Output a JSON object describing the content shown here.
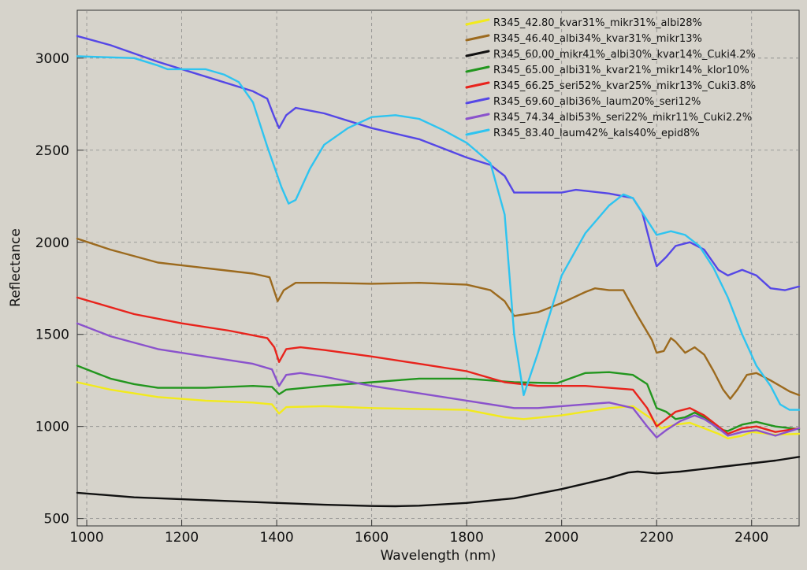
{
  "chart_data": {
    "type": "line",
    "title": "",
    "xlabel": "Wavelength (nm)",
    "ylabel": "Reflectance",
    "xlim": [
      980,
      2500
    ],
    "ylim": [
      460,
      3260
    ],
    "xticks": [
      1000,
      1200,
      1400,
      1600,
      1800,
      2000,
      2200,
      2400
    ],
    "yticks": [
      500,
      1000,
      1500,
      2000,
      2500,
      3000
    ],
    "grid": true,
    "legend_position": "top-right",
    "series": [
      {
        "name": "R345_42.80_kvar31%_mikr31%_albi28%",
        "color": "#f2ea1c",
        "points": [
          [
            980,
            1240
          ],
          [
            1050,
            1200
          ],
          [
            1150,
            1160
          ],
          [
            1250,
            1140
          ],
          [
            1350,
            1130
          ],
          [
            1390,
            1120
          ],
          [
            1405,
            1070
          ],
          [
            1420,
            1105
          ],
          [
            1500,
            1110
          ],
          [
            1600,
            1100
          ],
          [
            1700,
            1095
          ],
          [
            1800,
            1090
          ],
          [
            1880,
            1050
          ],
          [
            1920,
            1040
          ],
          [
            2000,
            1060
          ],
          [
            2100,
            1100
          ],
          [
            2150,
            1110
          ],
          [
            2190,
            1040
          ],
          [
            2210,
            990
          ],
          [
            2240,
            1010
          ],
          [
            2270,
            1020
          ],
          [
            2300,
            990
          ],
          [
            2330,
            960
          ],
          [
            2350,
            935
          ],
          [
            2380,
            950
          ],
          [
            2400,
            970
          ],
          [
            2450,
            955
          ],
          [
            2500,
            960
          ]
        ]
      },
      {
        "name": "R345_46.40_albi34%_kvar31%_mikr13%",
        "color": "#9c6a1e",
        "points": [
          [
            980,
            2020
          ],
          [
            1050,
            1960
          ],
          [
            1150,
            1890
          ],
          [
            1250,
            1860
          ],
          [
            1350,
            1830
          ],
          [
            1385,
            1810
          ],
          [
            1402,
            1680
          ],
          [
            1415,
            1740
          ],
          [
            1440,
            1780
          ],
          [
            1500,
            1780
          ],
          [
            1600,
            1775
          ],
          [
            1700,
            1780
          ],
          [
            1800,
            1770
          ],
          [
            1850,
            1740
          ],
          [
            1880,
            1680
          ],
          [
            1900,
            1600
          ],
          [
            1950,
            1620
          ],
          [
            2000,
            1670
          ],
          [
            2050,
            1730
          ],
          [
            2070,
            1750
          ],
          [
            2100,
            1740
          ],
          [
            2130,
            1740
          ],
          [
            2160,
            1600
          ],
          [
            2190,
            1470
          ],
          [
            2200,
            1400
          ],
          [
            2215,
            1410
          ],
          [
            2230,
            1480
          ],
          [
            2240,
            1460
          ],
          [
            2260,
            1400
          ],
          [
            2280,
            1430
          ],
          [
            2300,
            1390
          ],
          [
            2320,
            1300
          ],
          [
            2340,
            1200
          ],
          [
            2355,
            1150
          ],
          [
            2370,
            1200
          ],
          [
            2390,
            1280
          ],
          [
            2410,
            1290
          ],
          [
            2440,
            1250
          ],
          [
            2460,
            1220
          ],
          [
            2480,
            1190
          ],
          [
            2500,
            1170
          ]
        ]
      },
      {
        "name": "R345_60.00_mikr41%_albi30%_kvar14%_Cuki4.2%",
        "color": "#111111",
        "points": [
          [
            980,
            640
          ],
          [
            1100,
            615
          ],
          [
            1200,
            605
          ],
          [
            1300,
            595
          ],
          [
            1400,
            585
          ],
          [
            1500,
            575
          ],
          [
            1600,
            568
          ],
          [
            1650,
            567
          ],
          [
            1700,
            570
          ],
          [
            1800,
            585
          ],
          [
            1900,
            610
          ],
          [
            2000,
            660
          ],
          [
            2050,
            690
          ],
          [
            2100,
            720
          ],
          [
            2140,
            750
          ],
          [
            2160,
            755
          ],
          [
            2200,
            745
          ],
          [
            2250,
            755
          ],
          [
            2300,
            770
          ],
          [
            2350,
            785
          ],
          [
            2400,
            800
          ],
          [
            2450,
            815
          ],
          [
            2500,
            835
          ]
        ]
      },
      {
        "name": "R345_65.00_albi31%_kvar21%_mikr14%_klor10%",
        "color": "#22961e",
        "points": [
          [
            980,
            1330
          ],
          [
            1050,
            1260
          ],
          [
            1100,
            1230
          ],
          [
            1150,
            1210
          ],
          [
            1250,
            1210
          ],
          [
            1350,
            1220
          ],
          [
            1390,
            1215
          ],
          [
            1405,
            1175
          ],
          [
            1420,
            1200
          ],
          [
            1500,
            1220
          ],
          [
            1600,
            1240
          ],
          [
            1700,
            1260
          ],
          [
            1800,
            1260
          ],
          [
            1900,
            1240
          ],
          [
            1990,
            1235
          ],
          [
            2050,
            1290
          ],
          [
            2100,
            1295
          ],
          [
            2150,
            1280
          ],
          [
            2180,
            1230
          ],
          [
            2200,
            1100
          ],
          [
            2220,
            1080
          ],
          [
            2240,
            1040
          ],
          [
            2260,
            1050
          ],
          [
            2280,
            1075
          ],
          [
            2300,
            1050
          ],
          [
            2330,
            985
          ],
          [
            2350,
            975
          ],
          [
            2380,
            1010
          ],
          [
            2410,
            1025
          ],
          [
            2450,
            1000
          ],
          [
            2500,
            985
          ]
        ]
      },
      {
        "name": "R345_66.25_seri52%_kvar25%_mikr13%_Cuki3.8%",
        "color": "#e8231c",
        "points": [
          [
            980,
            1700
          ],
          [
            1100,
            1610
          ],
          [
            1200,
            1560
          ],
          [
            1300,
            1520
          ],
          [
            1380,
            1480
          ],
          [
            1395,
            1430
          ],
          [
            1405,
            1350
          ],
          [
            1420,
            1420
          ],
          [
            1450,
            1430
          ],
          [
            1500,
            1415
          ],
          [
            1600,
            1380
          ],
          [
            1700,
            1340
          ],
          [
            1800,
            1300
          ],
          [
            1880,
            1240
          ],
          [
            1950,
            1220
          ],
          [
            2050,
            1220
          ],
          [
            2150,
            1200
          ],
          [
            2180,
            1100
          ],
          [
            2200,
            1000
          ],
          [
            2220,
            1040
          ],
          [
            2240,
            1080
          ],
          [
            2270,
            1100
          ],
          [
            2300,
            1060
          ],
          [
            2330,
            1000
          ],
          [
            2350,
            960
          ],
          [
            2380,
            990
          ],
          [
            2410,
            1000
          ],
          [
            2450,
            970
          ],
          [
            2500,
            990
          ]
        ]
      },
      {
        "name": "R345_69.60_albi36%_laum20%_seri12%",
        "color": "#5547e6",
        "points": [
          [
            980,
            3120
          ],
          [
            1050,
            3070
          ],
          [
            1150,
            2980
          ],
          [
            1250,
            2900
          ],
          [
            1350,
            2820
          ],
          [
            1380,
            2780
          ],
          [
            1395,
            2680
          ],
          [
            1405,
            2620
          ],
          [
            1420,
            2690
          ],
          [
            1440,
            2730
          ],
          [
            1500,
            2700
          ],
          [
            1600,
            2620
          ],
          [
            1700,
            2560
          ],
          [
            1800,
            2460
          ],
          [
            1850,
            2420
          ],
          [
            1880,
            2360
          ],
          [
            1900,
            2270
          ],
          [
            2000,
            2270
          ],
          [
            2030,
            2285
          ],
          [
            2100,
            2265
          ],
          [
            2150,
            2240
          ],
          [
            2170,
            2160
          ],
          [
            2190,
            1960
          ],
          [
            2200,
            1870
          ],
          [
            2220,
            1920
          ],
          [
            2240,
            1980
          ],
          [
            2270,
            2000
          ],
          [
            2300,
            1960
          ],
          [
            2330,
            1850
          ],
          [
            2350,
            1820
          ],
          [
            2380,
            1850
          ],
          [
            2410,
            1820
          ],
          [
            2440,
            1750
          ],
          [
            2470,
            1740
          ],
          [
            2500,
            1760
          ]
        ]
      },
      {
        "name": "R345_74.34_albi53%_seri22%_mikr11%_Cuki2.2%",
        "color": "#8a52cc",
        "points": [
          [
            980,
            1560
          ],
          [
            1050,
            1490
          ],
          [
            1150,
            1420
          ],
          [
            1250,
            1380
          ],
          [
            1350,
            1340
          ],
          [
            1390,
            1310
          ],
          [
            1405,
            1220
          ],
          [
            1420,
            1280
          ],
          [
            1450,
            1290
          ],
          [
            1500,
            1270
          ],
          [
            1600,
            1220
          ],
          [
            1700,
            1180
          ],
          [
            1800,
            1140
          ],
          [
            1900,
            1100
          ],
          [
            1950,
            1100
          ],
          [
            2050,
            1120
          ],
          [
            2100,
            1130
          ],
          [
            2150,
            1100
          ],
          [
            2180,
            1000
          ],
          [
            2200,
            940
          ],
          [
            2220,
            980
          ],
          [
            2250,
            1030
          ],
          [
            2280,
            1060
          ],
          [
            2300,
            1040
          ],
          [
            2330,
            990
          ],
          [
            2350,
            950
          ],
          [
            2380,
            970
          ],
          [
            2410,
            980
          ],
          [
            2450,
            950
          ],
          [
            2500,
            990
          ]
        ]
      },
      {
        "name": "R345_83.40_laum42%_kals40%_epid8%",
        "color": "#2ec4f0",
        "points": [
          [
            980,
            3010
          ],
          [
            1100,
            3000
          ],
          [
            1150,
            2960
          ],
          [
            1170,
            2940
          ],
          [
            1250,
            2940
          ],
          [
            1290,
            2910
          ],
          [
            1320,
            2870
          ],
          [
            1350,
            2760
          ],
          [
            1380,
            2520
          ],
          [
            1410,
            2300
          ],
          [
            1425,
            2210
          ],
          [
            1440,
            2230
          ],
          [
            1470,
            2400
          ],
          [
            1500,
            2530
          ],
          [
            1550,
            2620
          ],
          [
            1600,
            2680
          ],
          [
            1650,
            2690
          ],
          [
            1700,
            2670
          ],
          [
            1750,
            2610
          ],
          [
            1800,
            2540
          ],
          [
            1850,
            2430
          ],
          [
            1880,
            2150
          ],
          [
            1900,
            1500
          ],
          [
            1920,
            1170
          ],
          [
            1950,
            1400
          ],
          [
            2000,
            1820
          ],
          [
            2050,
            2050
          ],
          [
            2100,
            2200
          ],
          [
            2130,
            2260
          ],
          [
            2150,
            2240
          ],
          [
            2180,
            2120
          ],
          [
            2200,
            2040
          ],
          [
            2230,
            2060
          ],
          [
            2260,
            2040
          ],
          [
            2290,
            1980
          ],
          [
            2320,
            1860
          ],
          [
            2350,
            1700
          ],
          [
            2380,
            1500
          ],
          [
            2410,
            1330
          ],
          [
            2440,
            1220
          ],
          [
            2460,
            1120
          ],
          [
            2480,
            1090
          ],
          [
            2500,
            1090
          ]
        ]
      }
    ]
  }
}
